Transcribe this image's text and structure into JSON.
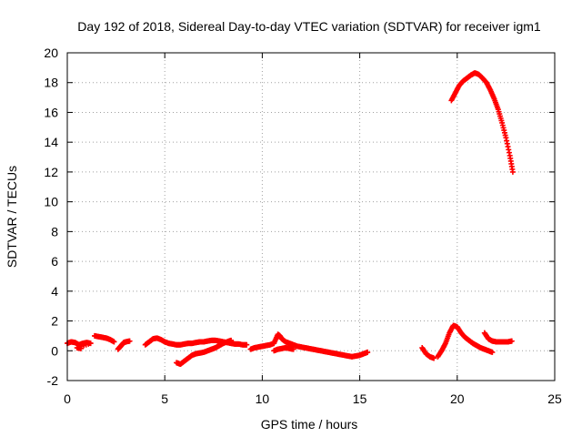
{
  "chart_data": {
    "type": "scatter",
    "title": "Day 192 of 2018, Sidereal Day-to-day VTEC variation (SDTVAR) for receiver igm1",
    "xlabel": "GPS time / hours",
    "ylabel": "SDTVAR / TECUs",
    "xlim": [
      0,
      25
    ],
    "ylim": [
      -2,
      20
    ],
    "xticks": [
      0,
      5,
      10,
      15,
      20,
      25
    ],
    "yticks": [
      -2,
      0,
      2,
      4,
      6,
      8,
      10,
      12,
      14,
      16,
      18,
      20
    ],
    "grid": true,
    "marker": "+",
    "color": "#ff0000",
    "series": [
      {
        "name": "SDTVAR",
        "segments": [
          [
            [
              0.0,
              0.5
            ],
            [
              0.2,
              0.6
            ],
            [
              0.4,
              0.55
            ],
            [
              0.6,
              0.4
            ],
            [
              0.8,
              0.5
            ],
            [
              1.0,
              0.55
            ],
            [
              1.2,
              0.5
            ],
            [
              0.5,
              0.2
            ],
            [
              0.7,
              0.15
            ]
          ],
          [
            [
              1.4,
              1.0
            ],
            [
              1.6,
              0.95
            ],
            [
              1.8,
              0.9
            ],
            [
              2.0,
              0.85
            ],
            [
              2.2,
              0.75
            ],
            [
              2.4,
              0.6
            ]
          ],
          [
            [
              2.6,
              0.1
            ],
            [
              2.7,
              0.25
            ],
            [
              2.8,
              0.4
            ],
            [
              2.9,
              0.55
            ],
            [
              3.0,
              0.6
            ],
            [
              3.2,
              0.65
            ]
          ],
          [
            [
              4.0,
              0.4
            ],
            [
              4.2,
              0.6
            ],
            [
              4.4,
              0.8
            ],
            [
              4.6,
              0.85
            ],
            [
              4.8,
              0.75
            ],
            [
              5.0,
              0.6
            ],
            [
              5.2,
              0.5
            ],
            [
              5.4,
              0.45
            ],
            [
              5.6,
              0.4
            ],
            [
              5.8,
              0.4
            ],
            [
              6.0,
              0.45
            ],
            [
              6.2,
              0.5
            ],
            [
              6.4,
              0.5
            ],
            [
              6.6,
              0.55
            ],
            [
              6.8,
              0.6
            ],
            [
              7.0,
              0.6
            ],
            [
              7.2,
              0.65
            ],
            [
              7.4,
              0.7
            ],
            [
              7.6,
              0.7
            ],
            [
              7.8,
              0.65
            ],
            [
              8.0,
              0.6
            ],
            [
              8.2,
              0.55
            ],
            [
              8.4,
              0.5
            ],
            [
              8.6,
              0.45
            ],
            [
              8.8,
              0.45
            ],
            [
              9.0,
              0.4
            ],
            [
              9.2,
              0.4
            ]
          ],
          [
            [
              5.6,
              -0.8
            ],
            [
              5.8,
              -0.9
            ],
            [
              6.0,
              -0.7
            ],
            [
              6.2,
              -0.5
            ],
            [
              6.4,
              -0.3
            ],
            [
              6.6,
              -0.2
            ],
            [
              6.8,
              -0.15
            ],
            [
              7.0,
              -0.1
            ],
            [
              7.2,
              0.0
            ],
            [
              7.4,
              0.1
            ],
            [
              7.6,
              0.2
            ],
            [
              7.8,
              0.35
            ],
            [
              8.0,
              0.5
            ],
            [
              8.2,
              0.6
            ],
            [
              8.4,
              0.7
            ]
          ],
          [
            [
              9.4,
              0.1
            ],
            [
              9.6,
              0.2
            ],
            [
              9.8,
              0.25
            ],
            [
              10.0,
              0.3
            ],
            [
              10.2,
              0.35
            ],
            [
              10.4,
              0.4
            ],
            [
              10.6,
              0.5
            ],
            [
              10.8,
              1.1
            ],
            [
              10.9,
              1.0
            ],
            [
              11.0,
              0.8
            ],
            [
              11.2,
              0.6
            ],
            [
              11.4,
              0.5
            ],
            [
              11.6,
              0.4
            ],
            [
              11.8,
              0.3
            ],
            [
              12.0,
              0.25
            ],
            [
              12.2,
              0.2
            ],
            [
              12.4,
              0.15
            ],
            [
              12.6,
              0.1
            ],
            [
              12.8,
              0.05
            ],
            [
              13.0,
              0.0
            ],
            [
              13.2,
              -0.05
            ],
            [
              13.4,
              -0.1
            ],
            [
              13.6,
              -0.15
            ],
            [
              13.8,
              -0.2
            ],
            [
              14.0,
              -0.25
            ],
            [
              14.2,
              -0.3
            ],
            [
              14.4,
              -0.35
            ],
            [
              14.6,
              -0.4
            ],
            [
              14.8,
              -0.35
            ],
            [
              15.0,
              -0.3
            ],
            [
              15.2,
              -0.2
            ],
            [
              15.4,
              -0.1
            ]
          ],
          [
            [
              10.6,
              0.0
            ],
            [
              10.8,
              0.1
            ],
            [
              11.0,
              0.15
            ],
            [
              11.2,
              0.2
            ],
            [
              11.4,
              0.15
            ],
            [
              11.6,
              0.1
            ]
          ],
          [
            [
              18.2,
              0.2
            ],
            [
              18.4,
              -0.2
            ],
            [
              18.6,
              -0.4
            ],
            [
              18.8,
              -0.5
            ]
          ],
          [
            [
              19.0,
              -0.4
            ],
            [
              19.2,
              0.0
            ],
            [
              19.4,
              0.5
            ],
            [
              19.6,
              1.2
            ],
            [
              19.8,
              1.7
            ],
            [
              20.0,
              1.6
            ],
            [
              20.2,
              1.2
            ],
            [
              20.4,
              0.9
            ],
            [
              20.6,
              0.7
            ],
            [
              20.8,
              0.5
            ],
            [
              21.0,
              0.35
            ],
            [
              21.2,
              0.2
            ],
            [
              21.4,
              0.1
            ],
            [
              21.6,
              0.0
            ],
            [
              21.8,
              -0.1
            ]
          ],
          [
            [
              21.4,
              1.2
            ],
            [
              21.6,
              0.8
            ],
            [
              21.8,
              0.65
            ],
            [
              22.0,
              0.6
            ],
            [
              22.2,
              0.6
            ],
            [
              22.4,
              0.6
            ],
            [
              22.6,
              0.6
            ],
            [
              22.8,
              0.65
            ]
          ],
          [
            [
              19.7,
              16.8
            ],
            [
              19.9,
              17.3
            ],
            [
              20.1,
              17.8
            ],
            [
              20.3,
              18.1
            ],
            [
              20.5,
              18.3
            ],
            [
              20.7,
              18.5
            ],
            [
              20.9,
              18.65
            ],
            [
              21.1,
              18.55
            ],
            [
              21.3,
              18.3
            ],
            [
              21.5,
              18.0
            ],
            [
              21.7,
              17.5
            ],
            [
              21.9,
              16.9
            ],
            [
              22.1,
              16.2
            ],
            [
              22.3,
              15.3
            ],
            [
              22.5,
              14.3
            ],
            [
              22.7,
              13.1
            ],
            [
              22.85,
              12.0
            ]
          ]
        ]
      }
    ]
  }
}
